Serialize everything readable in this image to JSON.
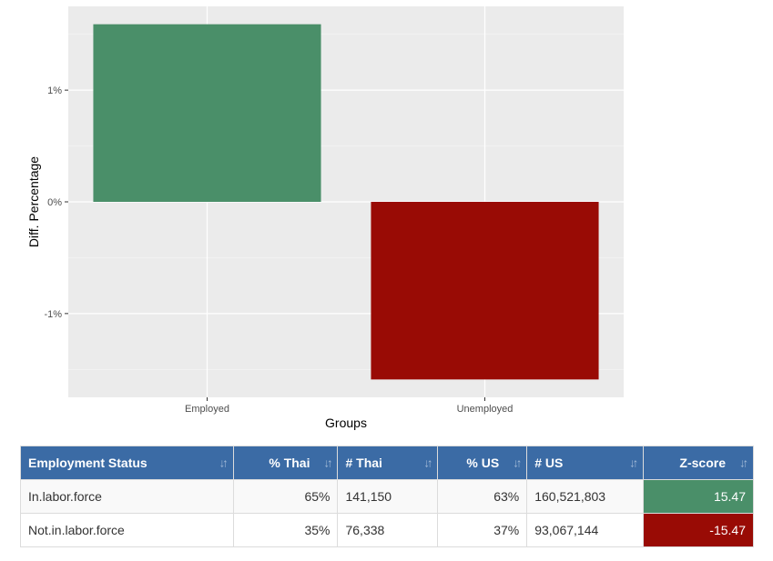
{
  "chart_data": {
    "type": "bar",
    "categories": [
      "Employed",
      "Unemployed"
    ],
    "values": [
      1.59,
      -1.59
    ],
    "colors": [
      "#4a8f69",
      "#990b05"
    ],
    "xlabel": "Groups",
    "ylabel": "Diff. Percentage",
    "ylim": [
      -1.75,
      1.75
    ],
    "yticks": [
      -1,
      0,
      1
    ],
    "ytick_labels": [
      "-1%",
      "0%",
      "1%"
    ],
    "grid": true,
    "panel_background": "#ebebeb"
  },
  "table": {
    "columns": [
      "Employment Status",
      "% Thai",
      "# Thai",
      "% US",
      "# US",
      "Z-score"
    ],
    "rows": [
      {
        "status": "In.labor.force",
        "pct_thai": "65%",
        "num_thai": "141,150",
        "pct_us": "63%",
        "num_us": "160,521,803",
        "z": "15.47"
      },
      {
        "status": "Not.in.labor.force",
        "pct_thai": "35%",
        "num_thai": "76,338",
        "pct_us": "37%",
        "num_us": "93,067,144",
        "z": "-15.47"
      }
    ],
    "colors": {
      "header": "#3b6ba5",
      "positive": "#4a8f69",
      "negative": "#990b05"
    }
  }
}
